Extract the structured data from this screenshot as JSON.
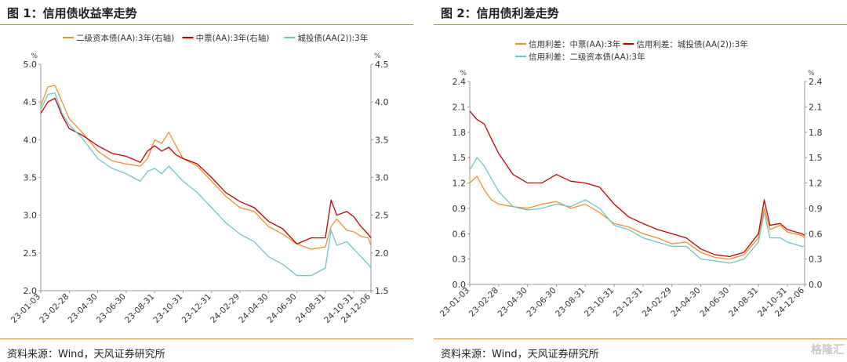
{
  "charts": [
    {
      "title": "图 1：信用债收益率走势",
      "source": "资料来源：Wind，天风证券研究所",
      "chart_data": {
        "type": "line",
        "left_unit": "%",
        "right_unit": "%",
        "left_ylim": [
          2.0,
          5.0
        ],
        "right_ylim": [
          1.5,
          4.5
        ],
        "left_ticks": [
          "2.0",
          "2.5",
          "3.0",
          "3.5",
          "4.0",
          "4.5",
          "5.0"
        ],
        "right_ticks": [
          "1.5",
          "2.0",
          "2.5",
          "3.0",
          "3.5",
          "4.0",
          "4.5"
        ],
        "x_ticks": [
          "23-01-03",
          "23-02-28",
          "23-04-30",
          "23-06-30",
          "23-08-31",
          "23-10-31",
          "23-12-31",
          "24-02-29",
          "24-04-30",
          "24-06-30",
          "24-08-31",
          "24-10-31",
          "24-12-06"
        ],
        "x_tick_pos": [
          0,
          2,
          4,
          6,
          8,
          10,
          12,
          14,
          16,
          18,
          20,
          22,
          23.2
        ],
        "x_range": [
          0,
          23.2
        ],
        "grid": false,
        "legend_position": "top",
        "series": [
          {
            "name": "二级资本债(AA):3年(右轴)",
            "axis": "right",
            "color": "#f28e2b",
            "x": [
              0,
              0.5,
              1,
              1.5,
              2,
              3,
              4,
              5,
              6,
              7,
              7.5,
              8,
              8.5,
              9,
              9.5,
              10,
              11,
              12,
              13,
              14,
              15,
              16,
              17,
              18,
              19,
              20,
              20.4,
              20.8,
              21.5,
              22,
              22.5,
              23,
              23.2
            ],
            "y": [
              3.95,
              4.2,
              4.22,
              4.0,
              3.78,
              3.58,
              3.35,
              3.22,
              3.18,
              3.15,
              3.25,
              3.5,
              3.45,
              3.6,
              3.42,
              3.25,
              3.15,
              2.95,
              2.75,
              2.6,
              2.55,
              2.35,
              2.25,
              2.12,
              2.05,
              2.08,
              2.35,
              2.45,
              2.3,
              2.28,
              2.22,
              2.2,
              2.1
            ]
          },
          {
            "name": "中票(AA):3年(右轴)",
            "axis": "right",
            "color": "#c00000",
            "x": [
              0,
              0.5,
              1,
              1.5,
              2,
              3,
              4,
              5,
              6,
              7,
              7.5,
              8,
              8.5,
              9,
              9.5,
              10,
              11,
              12,
              13,
              14,
              15,
              16,
              17,
              18,
              19,
              20,
              20.4,
              20.8,
              21.5,
              22,
              22.5,
              23,
              23.2
            ],
            "y": [
              3.85,
              4.0,
              4.05,
              3.82,
              3.65,
              3.55,
              3.42,
              3.32,
              3.28,
              3.2,
              3.35,
              3.42,
              3.35,
              3.4,
              3.3,
              3.25,
              3.18,
              3.0,
              2.8,
              2.68,
              2.6,
              2.42,
              2.32,
              2.12,
              2.2,
              2.2,
              2.7,
              2.5,
              2.55,
              2.48,
              2.35,
              2.25,
              2.2
            ]
          },
          {
            "name": "城投债(AA(2)):3年",
            "axis": "left",
            "color": "#6bc6c8",
            "x": [
              0,
              0.5,
              1,
              1.5,
              2,
              3,
              4,
              5,
              6,
              7,
              7.5,
              8,
              8.5,
              9,
              9.5,
              10,
              11,
              12,
              13,
              14,
              15,
              16,
              17,
              18,
              19,
              20,
              20.4,
              20.8,
              21.5,
              22,
              22.5,
              23,
              23.2
            ],
            "y": [
              4.4,
              4.6,
              4.62,
              4.35,
              4.2,
              4.0,
              3.75,
              3.62,
              3.55,
              3.45,
              3.58,
              3.62,
              3.55,
              3.65,
              3.55,
              3.45,
              3.3,
              3.1,
              2.9,
              2.75,
              2.65,
              2.45,
              2.35,
              2.2,
              2.2,
              2.3,
              2.8,
              2.6,
              2.65,
              2.55,
              2.45,
              2.35,
              2.3
            ]
          }
        ]
      }
    },
    {
      "title": "图 2：信用债利差走势",
      "source": "资料来源：Wind，天风证券研究所",
      "chart_data": {
        "type": "line",
        "left_unit": "%",
        "right_unit": "%",
        "left_ylim": [
          0.0,
          2.4
        ],
        "right_ylim": [
          0.0,
          2.4
        ],
        "left_ticks": [
          "0.0",
          "0.3",
          "0.6",
          "0.9",
          "1.2",
          "1.5",
          "1.8",
          "2.1",
          "2.4"
        ],
        "right_ticks": [
          "0.0",
          "0.3",
          "0.6",
          "0.9",
          "1.2",
          "1.5",
          "1.8",
          "2.1",
          "2.4"
        ],
        "x_ticks": [
          "23-01-03",
          "23-02-28",
          "23-04-30",
          "23-06-30",
          "23-08-31",
          "23-10-31",
          "23-12-31",
          "24-02-29",
          "24-04-30",
          "24-06-30",
          "24-08-31",
          "24-10-31",
          "24-12-06"
        ],
        "x_tick_pos": [
          0,
          2,
          4,
          6,
          8,
          10,
          12,
          14,
          16,
          18,
          20,
          22,
          23.2
        ],
        "x_range": [
          0,
          23.2
        ],
        "grid": false,
        "legend_position": "top",
        "series": [
          {
            "name": "信用利差：中票(AA):3年",
            "axis": "left",
            "color": "#f28e2b",
            "x": [
              0,
              0.5,
              1,
              1.5,
              2,
              3,
              4,
              5,
              6,
              7,
              8,
              9,
              10,
              11,
              12,
              13,
              14,
              15,
              16,
              17,
              18,
              19,
              20,
              20.4,
              20.8,
              21.5,
              22,
              23,
              23.2
            ],
            "y": [
              1.2,
              1.28,
              1.12,
              1.0,
              0.95,
              0.92,
              0.9,
              0.95,
              0.98,
              0.9,
              0.95,
              0.85,
              0.72,
              0.68,
              0.6,
              0.55,
              0.48,
              0.5,
              0.38,
              0.32,
              0.3,
              0.35,
              0.55,
              0.9,
              0.65,
              0.7,
              0.62,
              0.58,
              0.55
            ]
          },
          {
            "name": "信用利差：城投债(AA(2)):3年",
            "axis": "left",
            "color": "#c00000",
            "x": [
              0,
              0.5,
              1,
              1.5,
              2,
              3,
              4,
              5,
              6,
              7,
              8,
              9,
              10,
              11,
              12,
              13,
              14,
              15,
              16,
              17,
              18,
              19,
              20,
              20.4,
              20.8,
              21.5,
              22,
              23,
              23.2
            ],
            "y": [
              2.05,
              1.95,
              1.9,
              1.72,
              1.55,
              1.3,
              1.2,
              1.2,
              1.3,
              1.22,
              1.2,
              1.15,
              0.95,
              0.8,
              0.72,
              0.65,
              0.6,
              0.55,
              0.42,
              0.35,
              0.33,
              0.38,
              0.6,
              1.0,
              0.7,
              0.72,
              0.65,
              0.6,
              0.58
            ]
          },
          {
            "name": "信用利差：二级资本债(AA):3年",
            "axis": "left",
            "color": "#6bc6c8",
            "x": [
              0,
              0.5,
              1,
              1.5,
              2,
              3,
              4,
              5,
              6,
              7,
              8,
              9,
              10,
              11,
              12,
              13,
              14,
              15,
              16,
              17,
              18,
              19,
              20,
              20.4,
              20.8,
              21.5,
              22,
              23,
              23.2
            ],
            "y": [
              1.35,
              1.5,
              1.4,
              1.25,
              1.1,
              0.92,
              0.88,
              0.9,
              0.95,
              0.92,
              1.0,
              0.9,
              0.7,
              0.65,
              0.55,
              0.5,
              0.45,
              0.45,
              0.3,
              0.28,
              0.25,
              0.3,
              0.5,
              0.85,
              0.55,
              0.55,
              0.5,
              0.45,
              0.45
            ]
          }
        ]
      }
    }
  ],
  "watermark": "格隆汇"
}
